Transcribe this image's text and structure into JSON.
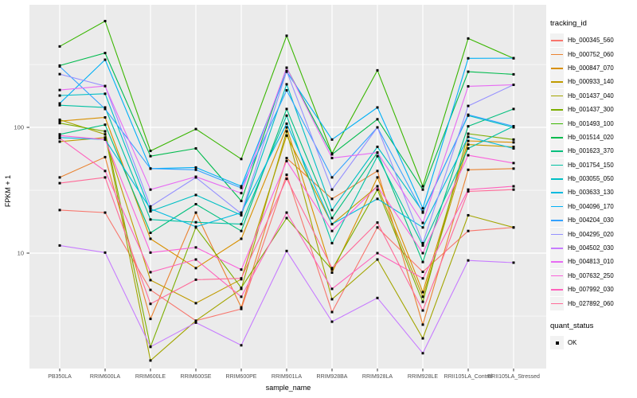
{
  "figure": {
    "background_color": "#FFFFFF",
    "panel_color": "#EBEBEB",
    "grid_color": "#FFFFFF",
    "tick_text_color": "#4D4D4D",
    "point_color": "#000000"
  },
  "chart_data": {
    "type": "line",
    "title": "",
    "xlabel": "sample_name",
    "ylabel": "FPKM + 1",
    "y_scale": "log10",
    "y_ticks": [
      10,
      100
    ],
    "y_minor_ticks": [
      3.16,
      31.6,
      316
    ],
    "ylim": [
      1.2,
      950
    ],
    "grid": true,
    "point_shape": "filled-square",
    "x_categories": [
      "PB350LA",
      "RRIM600LA",
      "RRIM600LE",
      "RRIM600SE",
      "RRIM600PE",
      "RRIM901LA",
      "RRIM928BA",
      "RRIM928LA",
      "RRIM928LE",
      "RRII105LA_Control",
      "RRII105LA_Stressed"
    ],
    "series": [
      {
        "name": "Hb_000345_560",
        "color": "#F8766D",
        "values": [
          22,
          21,
          5.1,
          2.9,
          3.6,
          42,
          3.4,
          16,
          7.1,
          15,
          16
        ]
      },
      {
        "name": "Hb_000752_060",
        "color": "#EA8331",
        "values": [
          40,
          58,
          3.0,
          21,
          3.7,
          57,
          27,
          45,
          2.7,
          46,
          47
        ]
      },
      {
        "name": "Hb_000847_070",
        "color": "#D89000",
        "values": [
          112,
          120,
          13,
          7.6,
          13,
          100,
          7.0,
          40,
          4.9,
          78,
          76
        ]
      },
      {
        "name": "Hb_000933_140",
        "color": "#C09B00",
        "values": [
          77,
          83,
          6.1,
          4.0,
          6.2,
          86,
          17,
          34,
          4.5,
          73,
          70
        ]
      },
      {
        "name": "Hb_001437_040",
        "color": "#A3A500",
        "values": [
          115,
          88,
          1.4,
          2.9,
          5.2,
          93,
          4.3,
          8.9,
          2.1,
          20,
          16
        ]
      },
      {
        "name": "Hb_001437_300",
        "color": "#7CAE00",
        "values": [
          108,
          93,
          1.8,
          16,
          5.3,
          19,
          7.4,
          32,
          4.1,
          89,
          80
        ]
      },
      {
        "name": "Hb_001493_100",
        "color": "#39B600",
        "values": [
          440,
          700,
          65,
          97,
          56,
          535,
          62,
          284,
          34,
          509,
          354
        ]
      },
      {
        "name": "Hb_001514_020",
        "color": "#00BB4E",
        "values": [
          310,
          390,
          59,
          68,
          26,
          298,
          61,
          116,
          32,
          277,
          264
        ]
      },
      {
        "name": "Hb_001623_370",
        "color": "#00BF7D",
        "values": [
          88,
          105,
          14.5,
          24.5,
          15,
          140,
          19,
          63,
          8.5,
          102,
          140
        ]
      },
      {
        "name": "Hb_001754_150",
        "color": "#00C1A3",
        "values": [
          150,
          144,
          18.5,
          17.6,
          17,
          124,
          12,
          59,
          11.5,
          68,
          102
        ]
      },
      {
        "name": "Hb_003055_050",
        "color": "#00BFC4",
        "values": [
          179,
          185,
          21.5,
          29,
          20,
          220,
          22,
          70,
          21.4,
          124,
          100
        ]
      },
      {
        "name": "Hb_003633_130",
        "color": "#00BAE0",
        "values": [
          83,
          80,
          22.5,
          16.2,
          21,
          107,
          17,
          27,
          16,
          84,
          68
        ]
      },
      {
        "name": "Hb_004096_170",
        "color": "#00B0F6",
        "values": [
          155,
          345,
          47,
          48,
          34,
          277,
          80,
          144,
          22.7,
          354,
          355
        ]
      },
      {
        "name": "Hb_004204_030",
        "color": "#35A2FF",
        "values": [
          305,
          140,
          47,
          46,
          33,
          197,
          40,
          100,
          21,
          126,
          102
        ]
      },
      {
        "name": "Hb_004295_020",
        "color": "#9590FF",
        "values": [
          265,
          213,
          23.5,
          40,
          20.6,
          280,
          32,
          100,
          12,
          148,
          218
        ]
      },
      {
        "name": "Hb_004502_030",
        "color": "#C77CFF",
        "values": [
          11.5,
          10.1,
          1.8,
          2.8,
          1.85,
          10.4,
          2.85,
          4.4,
          1.6,
          8.75,
          8.4
        ]
      },
      {
        "name": "Hb_004813_010",
        "color": "#E76BF3",
        "values": [
          198,
          213,
          32,
          40.5,
          30,
          298,
          57,
          63,
          17.4,
          212,
          218
        ]
      },
      {
        "name": "Hb_007632_250",
        "color": "#FA62DB",
        "values": [
          86,
          80,
          10.1,
          11.1,
          7.4,
          54,
          15,
          34,
          10,
          60,
          52
        ]
      },
      {
        "name": "Hb_007992_030",
        "color": "#FF62BC",
        "values": [
          82,
          45,
          7.05,
          8.9,
          4.5,
          21,
          5.2,
          10,
          6.3,
          32,
          34
        ]
      },
      {
        "name": "Hb_027892_060",
        "color": "#FF6A98",
        "values": [
          36,
          40,
          3.95,
          6.15,
          6.3,
          39,
          7.6,
          17.5,
          3.5,
          31,
          32
        ]
      }
    ],
    "legend": {
      "position": "right",
      "tracking_title": "tracking_id",
      "quant_title": "quant_status",
      "quant_value": "OK"
    }
  }
}
